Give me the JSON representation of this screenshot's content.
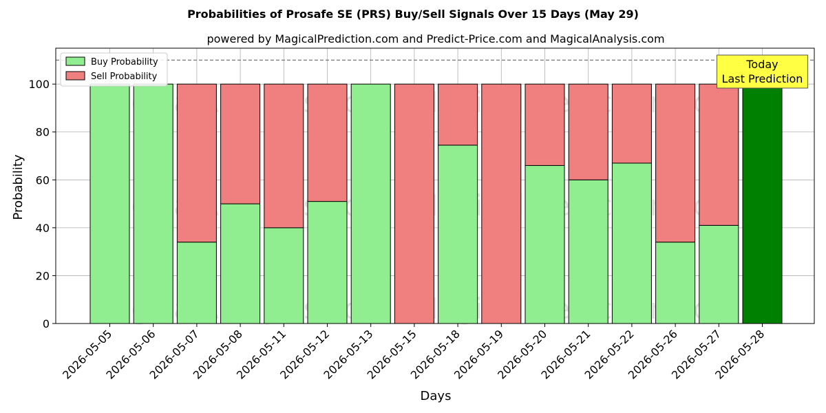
{
  "chart_data": {
    "type": "bar",
    "stacked": true,
    "title": "Probabilities of Prosafe SE (PRS) Buy/Sell Signals Over 15 Days (May 29)",
    "subtitle": "powered by MagicalPrediction.com and Predict-Price.com and MagicalAnalysis.com",
    "xlabel": "Days",
    "ylabel": "Probability",
    "ylim": [
      0,
      115
    ],
    "yticks": [
      0,
      20,
      40,
      60,
      80,
      100
    ],
    "grid": true,
    "legend_position": "top-left",
    "reference_line": 110,
    "categories": [
      "2026-05-05",
      "2026-05-06",
      "2026-05-07",
      "2026-05-08",
      "2026-05-11",
      "2026-05-12",
      "2026-05-13",
      "2026-05-15",
      "2026-05-18",
      "2026-05-19",
      "2026-05-20",
      "2026-05-21",
      "2026-05-22",
      "2026-05-26",
      "2026-05-27",
      "2026-05-28"
    ],
    "series": [
      {
        "name": "Buy Probability",
        "color": "#90ee90",
        "values": [
          100,
          100,
          34,
          50,
          40,
          51,
          100,
          0,
          74.5,
          0,
          66,
          60,
          67,
          34,
          41,
          100
        ]
      },
      {
        "name": "Sell Probability",
        "color": "#f08080",
        "values": [
          0,
          0,
          66,
          50,
          60,
          49,
          0,
          100,
          25.5,
          100,
          34,
          40,
          33,
          66,
          59,
          0
        ]
      }
    ],
    "highlight": {
      "index": 15,
      "color": "#008000",
      "annotation": [
        "Today",
        "Last Prediction"
      ],
      "annotation_color": "#ffff44"
    },
    "watermarks": [
      "MagicalAnalysis.com",
      "MagicalPrediction.com"
    ]
  }
}
